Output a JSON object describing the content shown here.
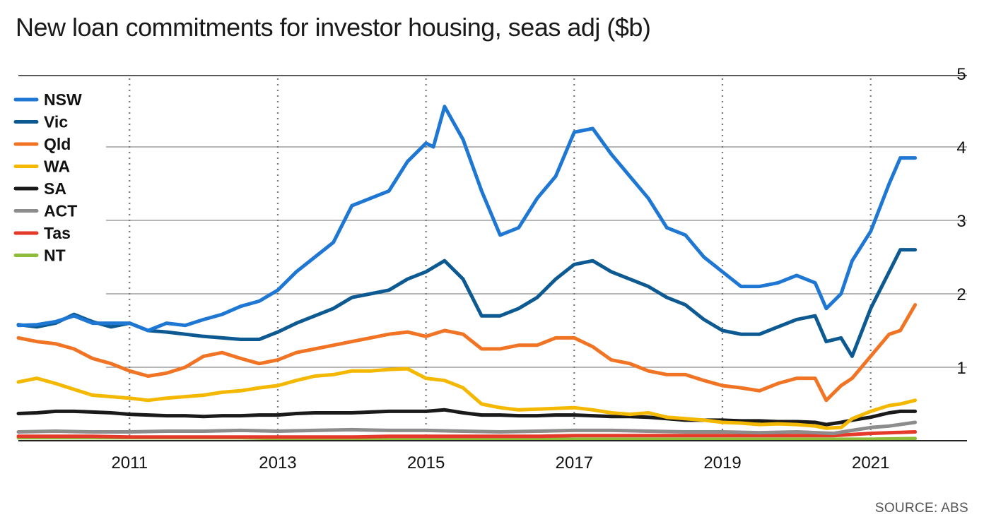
{
  "chart_data": {
    "type": "line",
    "title": "New loan commitments for investor housing, seas adj ($b)",
    "source": "SOURCE: ABS",
    "xlabel": "",
    "ylabel": "",
    "xlim": [
      2009.5,
      2022.3
    ],
    "ylim": [
      0,
      5
    ],
    "x_ticks": [
      {
        "value": 2011,
        "label": "2011"
      },
      {
        "value": 2013,
        "label": "2013"
      },
      {
        "value": 2015,
        "label": "2015"
      },
      {
        "value": 2017,
        "label": "2017"
      },
      {
        "value": 2019,
        "label": "2019"
      },
      {
        "value": 2021,
        "label": "2021"
      }
    ],
    "y_ticks": [
      {
        "value": 1,
        "label": "1"
      },
      {
        "value": 2,
        "label": "2"
      },
      {
        "value": 3,
        "label": "3"
      },
      {
        "value": 4,
        "label": "4"
      },
      {
        "value": 5,
        "label": "5"
      }
    ],
    "grid": true,
    "legend_position": "top-left",
    "series": [
      {
        "name": "NSW",
        "color": "#1f77d4",
        "x": [
          2009.5,
          2009.75,
          2010,
          2010.25,
          2010.5,
          2010.75,
          2011,
          2011.25,
          2011.5,
          2011.75,
          2012,
          2012.25,
          2012.5,
          2012.75,
          2013,
          2013.25,
          2013.5,
          2013.75,
          2014,
          2014.25,
          2014.5,
          2014.75,
          2015,
          2015.1,
          2015.25,
          2015.5,
          2015.75,
          2016,
          2016.25,
          2016.5,
          2016.75,
          2017,
          2017.25,
          2017.5,
          2017.75,
          2018,
          2018.25,
          2018.5,
          2018.75,
          2019,
          2019.25,
          2019.5,
          2019.75,
          2020,
          2020.25,
          2020.4,
          2020.6,
          2020.75,
          2021,
          2021.25,
          2021.4,
          2021.6
        ],
        "y": [
          1.57,
          1.58,
          1.62,
          1.7,
          1.6,
          1.6,
          1.6,
          1.5,
          1.6,
          1.57,
          1.65,
          1.72,
          1.83,
          1.9,
          2.05,
          2.3,
          2.5,
          2.7,
          3.2,
          3.3,
          3.4,
          3.8,
          4.05,
          4.0,
          4.55,
          4.1,
          3.4,
          2.8,
          2.9,
          3.3,
          3.6,
          4.2,
          4.25,
          3.9,
          3.6,
          3.3,
          2.9,
          2.8,
          2.5,
          2.3,
          2.1,
          2.1,
          2.15,
          2.25,
          2.15,
          1.8,
          2.0,
          2.45,
          2.85,
          3.5,
          3.85,
          3.85
        ]
      },
      {
        "name": "Vic",
        "color": "#0d5a92",
        "x": [
          2009.5,
          2009.75,
          2010,
          2010.25,
          2010.5,
          2010.75,
          2011,
          2011.25,
          2011.5,
          2011.75,
          2012,
          2012.25,
          2012.5,
          2012.75,
          2013,
          2013.25,
          2013.5,
          2013.75,
          2014,
          2014.25,
          2014.5,
          2014.75,
          2015,
          2015.25,
          2015.5,
          2015.75,
          2016,
          2016.25,
          2016.5,
          2016.75,
          2017,
          2017.25,
          2017.5,
          2017.75,
          2018,
          2018.25,
          2018.5,
          2018.75,
          2019,
          2019.25,
          2019.5,
          2019.75,
          2020,
          2020.25,
          2020.4,
          2020.6,
          2020.75,
          2021,
          2021.25,
          2021.4,
          2021.6
        ],
        "y": [
          1.58,
          1.55,
          1.6,
          1.72,
          1.62,
          1.55,
          1.6,
          1.5,
          1.48,
          1.45,
          1.42,
          1.4,
          1.38,
          1.38,
          1.48,
          1.6,
          1.7,
          1.8,
          1.95,
          2.0,
          2.05,
          2.2,
          2.3,
          2.45,
          2.2,
          1.7,
          1.7,
          1.8,
          1.95,
          2.2,
          2.4,
          2.45,
          2.3,
          2.2,
          2.1,
          1.95,
          1.85,
          1.65,
          1.5,
          1.45,
          1.45,
          1.55,
          1.65,
          1.7,
          1.35,
          1.4,
          1.15,
          1.8,
          2.3,
          2.6,
          2.6
        ]
      },
      {
        "name": "Qld",
        "color": "#f07424",
        "x": [
          2009.5,
          2009.75,
          2010,
          2010.25,
          2010.5,
          2010.75,
          2011,
          2011.25,
          2011.5,
          2011.75,
          2012,
          2012.25,
          2012.5,
          2012.75,
          2013,
          2013.25,
          2013.5,
          2013.75,
          2014,
          2014.25,
          2014.5,
          2014.75,
          2015,
          2015.25,
          2015.5,
          2015.75,
          2016,
          2016.25,
          2016.5,
          2016.75,
          2017,
          2017.25,
          2017.5,
          2017.75,
          2018,
          2018.25,
          2018.5,
          2018.75,
          2019,
          2019.25,
          2019.5,
          2019.75,
          2020,
          2020.25,
          2020.4,
          2020.6,
          2020.75,
          2021,
          2021.25,
          2021.4,
          2021.6
        ],
        "y": [
          1.4,
          1.35,
          1.32,
          1.25,
          1.12,
          1.05,
          0.95,
          0.88,
          0.92,
          1.0,
          1.15,
          1.2,
          1.12,
          1.05,
          1.1,
          1.2,
          1.25,
          1.3,
          1.35,
          1.4,
          1.45,
          1.48,
          1.42,
          1.5,
          1.45,
          1.25,
          1.25,
          1.3,
          1.3,
          1.4,
          1.4,
          1.28,
          1.1,
          1.05,
          0.95,
          0.9,
          0.9,
          0.82,
          0.75,
          0.72,
          0.68,
          0.78,
          0.85,
          0.85,
          0.55,
          0.75,
          0.85,
          1.15,
          1.45,
          1.5,
          1.85
        ]
      },
      {
        "name": "WA",
        "color": "#f5b800",
        "x": [
          2009.5,
          2009.75,
          2010,
          2010.25,
          2010.5,
          2010.75,
          2011,
          2011.25,
          2011.5,
          2011.75,
          2012,
          2012.25,
          2012.5,
          2012.75,
          2013,
          2013.25,
          2013.5,
          2013.75,
          2014,
          2014.25,
          2014.5,
          2014.75,
          2015,
          2015.25,
          2015.5,
          2015.75,
          2016,
          2016.25,
          2016.5,
          2016.75,
          2017,
          2017.25,
          2017.5,
          2017.75,
          2018,
          2018.25,
          2018.5,
          2018.75,
          2019,
          2019.25,
          2019.5,
          2019.75,
          2020,
          2020.25,
          2020.4,
          2020.6,
          2020.75,
          2021,
          2021.25,
          2021.4,
          2021.6
        ],
        "y": [
          0.8,
          0.85,
          0.78,
          0.7,
          0.62,
          0.6,
          0.58,
          0.55,
          0.58,
          0.6,
          0.62,
          0.66,
          0.68,
          0.72,
          0.75,
          0.82,
          0.88,
          0.9,
          0.95,
          0.95,
          0.97,
          0.98,
          0.85,
          0.82,
          0.72,
          0.5,
          0.45,
          0.42,
          0.43,
          0.44,
          0.45,
          0.42,
          0.38,
          0.36,
          0.38,
          0.32,
          0.3,
          0.28,
          0.25,
          0.24,
          0.22,
          0.23,
          0.22,
          0.2,
          0.17,
          0.18,
          0.3,
          0.4,
          0.48,
          0.5,
          0.55
        ]
      },
      {
        "name": "SA",
        "color": "#1a1a1a",
        "x": [
          2009.5,
          2009.75,
          2010,
          2010.25,
          2010.5,
          2010.75,
          2011,
          2011.25,
          2011.5,
          2011.75,
          2012,
          2012.25,
          2012.5,
          2012.75,
          2013,
          2013.25,
          2013.5,
          2013.75,
          2014,
          2014.25,
          2014.5,
          2014.75,
          2015,
          2015.25,
          2015.5,
          2015.75,
          2016,
          2016.25,
          2016.5,
          2016.75,
          2017,
          2017.25,
          2017.5,
          2017.75,
          2018,
          2018.25,
          2018.5,
          2018.75,
          2019,
          2019.25,
          2019.5,
          2019.75,
          2020,
          2020.25,
          2020.4,
          2020.6,
          2020.75,
          2021,
          2021.25,
          2021.4,
          2021.6
        ],
        "y": [
          0.37,
          0.38,
          0.4,
          0.4,
          0.39,
          0.38,
          0.36,
          0.35,
          0.34,
          0.34,
          0.33,
          0.34,
          0.34,
          0.35,
          0.35,
          0.37,
          0.38,
          0.38,
          0.38,
          0.39,
          0.4,
          0.4,
          0.4,
          0.42,
          0.38,
          0.35,
          0.35,
          0.34,
          0.34,
          0.35,
          0.35,
          0.34,
          0.33,
          0.33,
          0.32,
          0.3,
          0.28,
          0.28,
          0.28,
          0.27,
          0.27,
          0.26,
          0.26,
          0.25,
          0.22,
          0.25,
          0.28,
          0.32,
          0.38,
          0.4,
          0.4
        ]
      },
      {
        "name": "ACT",
        "color": "#8c8c8c",
        "x": [
          2009.5,
          2010,
          2010.5,
          2011,
          2011.5,
          2012,
          2012.5,
          2013,
          2013.5,
          2014,
          2014.5,
          2015,
          2015.5,
          2016,
          2016.5,
          2017,
          2017.5,
          2018,
          2018.5,
          2019,
          2019.5,
          2020,
          2020.5,
          2020.75,
          2021,
          2021.25,
          2021.6
        ],
        "y": [
          0.12,
          0.13,
          0.12,
          0.12,
          0.13,
          0.13,
          0.14,
          0.13,
          0.14,
          0.15,
          0.14,
          0.14,
          0.13,
          0.12,
          0.13,
          0.14,
          0.14,
          0.13,
          0.12,
          0.12,
          0.11,
          0.12,
          0.1,
          0.14,
          0.18,
          0.2,
          0.25
        ]
      },
      {
        "name": "Tas",
        "color": "#e53a2b",
        "x": [
          2009.5,
          2010,
          2010.5,
          2011,
          2011.5,
          2012,
          2012.5,
          2013,
          2013.5,
          2014,
          2014.5,
          2015,
          2015.5,
          2016,
          2016.5,
          2017,
          2017.5,
          2018,
          2018.5,
          2019,
          2019.5,
          2020,
          2020.5,
          2021,
          2021.6
        ],
        "y": [
          0.06,
          0.06,
          0.06,
          0.05,
          0.05,
          0.05,
          0.05,
          0.05,
          0.05,
          0.05,
          0.06,
          0.06,
          0.06,
          0.06,
          0.06,
          0.07,
          0.07,
          0.07,
          0.07,
          0.07,
          0.07,
          0.07,
          0.07,
          0.1,
          0.12
        ]
      },
      {
        "name": "NT",
        "color": "#8fbc3a",
        "x": [
          2009.5,
          2010,
          2010.5,
          2011,
          2011.5,
          2012,
          2012.5,
          2013,
          2013.5,
          2014,
          2014.5,
          2015,
          2015.5,
          2016,
          2016.5,
          2017,
          2017.5,
          2018,
          2018.5,
          2019,
          2019.5,
          2020,
          2020.5,
          2021,
          2021.6
        ],
        "y": [
          0.04,
          0.04,
          0.04,
          0.04,
          0.04,
          0.04,
          0.04,
          0.03,
          0.03,
          0.03,
          0.03,
          0.03,
          0.03,
          0.02,
          0.02,
          0.02,
          0.02,
          0.02,
          0.02,
          0.02,
          0.02,
          0.02,
          0.02,
          0.02,
          0.03
        ]
      }
    ]
  }
}
